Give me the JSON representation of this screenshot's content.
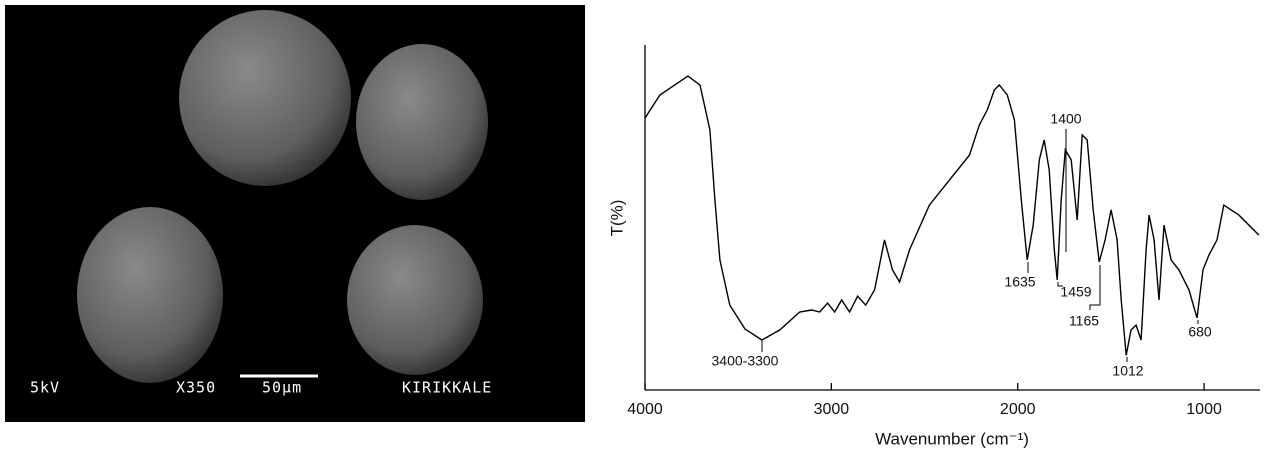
{
  "sem_image": {
    "voltage": "5kV",
    "magnification": "X350",
    "scale_bar": "50µm",
    "label": "KIRIKKALE"
  },
  "chart_data": {
    "type": "line",
    "x_label": "Wavenumber (cm⁻¹)",
    "y_label": "T(%)",
    "x": [
      4000,
      3920,
      3770,
      3705,
      3652,
      3625,
      3598,
      3545,
      3464,
      3373,
      3277,
      3170,
      3106,
      3063,
      3020,
      2982,
      2945,
      2902,
      2859,
      2816,
      2768,
      2715,
      2672,
      2634,
      2581,
      2474,
      2366,
      2259,
      2206,
      2163,
      2125,
      2099,
      2056,
      2018,
      1981,
      1949,
      1917,
      1884,
      1858,
      1831,
      1804,
      1788,
      1767,
      1745,
      1713,
      1681,
      1654,
      1627,
      1595,
      1563,
      1531,
      1499,
      1467,
      1445,
      1418,
      1392,
      1365,
      1338,
      1311,
      1295,
      1268,
      1242,
      1215,
      1177,
      1135,
      1081,
      1038,
      1006,
      974,
      931,
      894,
      813,
      706
    ],
    "values": [
      78.8,
      85.5,
      91,
      88.4,
      75.4,
      55.1,
      37.7,
      24.6,
      17.7,
      14.5,
      17.4,
      22.6,
      23.2,
      22.6,
      25.2,
      22.6,
      26.1,
      22.6,
      27.2,
      24.6,
      29,
      43.5,
      34.8,
      31.3,
      40.6,
      53.6,
      60.9,
      68.1,
      76.8,
      81.2,
      87,
      88.4,
      85.5,
      78.3,
      55.1,
      37.7,
      47.8,
      66.7,
      72.5,
      63.8,
      40.6,
      31.9,
      55.1,
      69.6,
      66.7,
      49.3,
      73.9,
      72.5,
      52.2,
      37.1,
      43.5,
      52.2,
      43.5,
      26.1,
      10.1,
      17.4,
      18.8,
      14.5,
      40.6,
      50.7,
      43.5,
      26.1,
      47.8,
      37.7,
      34.8,
      29,
      20.9,
      34.8,
      39.1,
      43.5,
      53.6,
      50.7,
      44.9
    ],
    "color": "#000000",
    "xlim": [
      4000,
      700
    ],
    "xticks": [
      4000,
      3000,
      2000,
      1000
    ],
    "ylim": [
      0,
      100
    ],
    "annotations": [
      "3400-3300",
      "1635",
      "1400",
      "1459",
      "1165",
      "1012",
      "680"
    ]
  }
}
